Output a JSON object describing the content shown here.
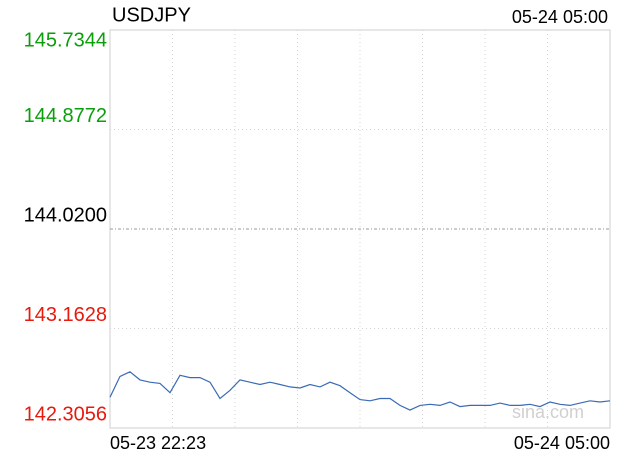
{
  "chart_data": {
    "type": "line",
    "title": "USDJPY",
    "timestamp": "05-24 05:00",
    "categories": [
      "05-23 22:23",
      null,
      null,
      null,
      null,
      null,
      null,
      null,
      null,
      null,
      null,
      null,
      null,
      null,
      null,
      null,
      null,
      null,
      null,
      null,
      null,
      null,
      null,
      null,
      null,
      null,
      null,
      null,
      null,
      null,
      null,
      null,
      null,
      null,
      null,
      null,
      null,
      null,
      null,
      null,
      null,
      null,
      null,
      null,
      null,
      null,
      null,
      null,
      null,
      null,
      "05-24 05:00"
    ],
    "values": [
      142.57,
      142.75,
      142.79,
      142.72,
      142.7,
      142.69,
      142.61,
      142.76,
      142.74,
      142.74,
      142.7,
      142.56,
      142.63,
      142.72,
      142.7,
      142.68,
      142.7,
      142.68,
      142.66,
      142.65,
      142.68,
      142.66,
      142.7,
      142.67,
      142.61,
      142.55,
      142.54,
      142.56,
      142.56,
      142.5,
      142.46,
      142.5,
      142.51,
      142.5,
      142.53,
      142.49,
      142.5,
      142.5,
      142.5,
      142.52,
      142.5,
      142.5,
      142.51,
      142.49,
      142.53,
      142.51,
      142.5,
      142.52,
      142.54,
      142.53,
      142.54
    ],
    "color": "#3a6bb5",
    "ylim": [
      142.3056,
      145.7344
    ],
    "yticks": [
      142.3056,
      143.1628,
      {
        "value": 144.02,
        "label": "144.0200"
      },
      144.8772,
      145.7344
    ],
    "ytick_colors": [
      "#e8190d",
      "#e8190d",
      "#000000",
      "#0a9e0a",
      "#0a9e0a"
    ],
    "watermark": "sina.com"
  }
}
